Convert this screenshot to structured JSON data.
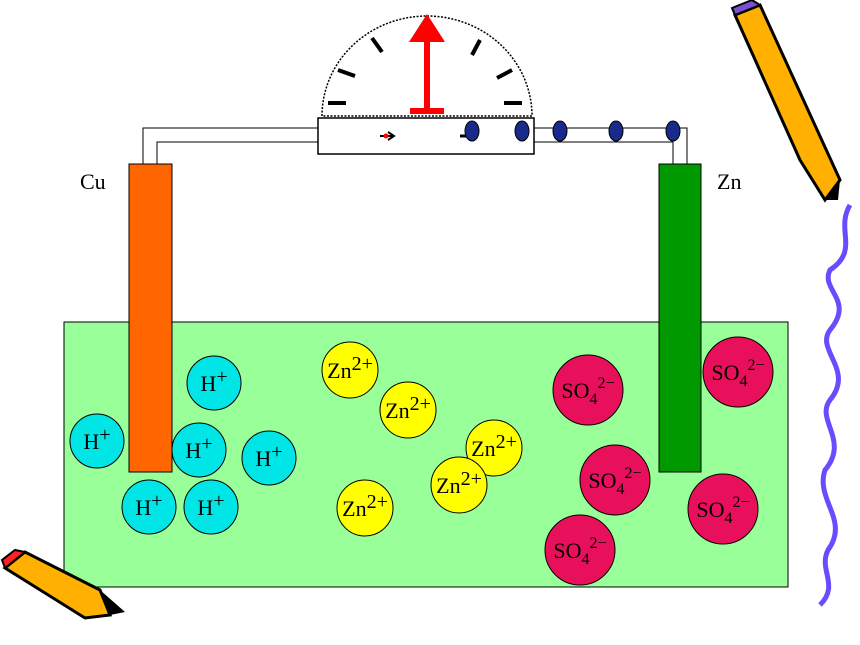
{
  "electrodes": {
    "left": {
      "label": "Cu"
    },
    "right": {
      "label": "Zn"
    }
  },
  "ions": [
    {
      "base": "H",
      "charge": "+"
    },
    {
      "base": "H",
      "charge": "+"
    },
    {
      "base": "H",
      "charge": "+"
    },
    {
      "base": "H",
      "charge": "+"
    },
    {
      "base": "H",
      "charge": "+"
    },
    {
      "base": "H",
      "charge": "+"
    },
    {
      "base": "Zn",
      "charge": "2+"
    },
    {
      "base": "Zn",
      "charge": "2+"
    },
    {
      "base": "Zn",
      "charge": "2+"
    },
    {
      "base": "Zn",
      "charge": "2+"
    },
    {
      "base": "Zn",
      "charge": "2+"
    },
    {
      "base": "SO",
      "sub": "4",
      "charge": "2−"
    },
    {
      "base": "SO",
      "sub": "4",
      "charge": "2−"
    },
    {
      "base": "SO",
      "sub": "4",
      "charge": "2−"
    },
    {
      "base": "SO",
      "sub": "4",
      "charge": "2−"
    },
    {
      "base": "SO",
      "sub": "4",
      "charge": "2−"
    }
  ]
}
